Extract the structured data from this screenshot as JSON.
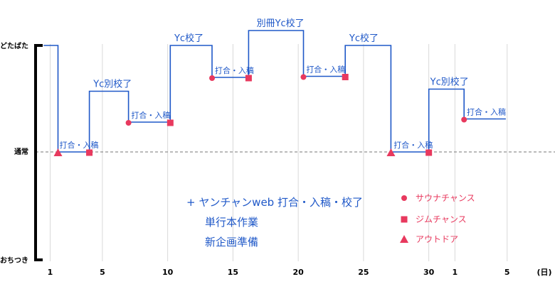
{
  "chart_data": {
    "type": "line",
    "y_levels": [
      {
        "key": "high",
        "label": "どたばた"
      },
      {
        "key": "normal",
        "label": "通常"
      },
      {
        "key": "low",
        "label": "おちつき"
      }
    ],
    "x_axis": {
      "unit_label": "(日)",
      "ticks": [
        {
          "day": 1,
          "label": "1"
        },
        {
          "day": 5,
          "label": "5"
        },
        {
          "day": 10,
          "label": "10"
        },
        {
          "day": 15,
          "label": "15"
        },
        {
          "day": 20,
          "label": "20"
        },
        {
          "day": 25,
          "label": "25"
        },
        {
          "day": 30,
          "label": "30"
        },
        {
          "day": 32,
          "label": "1"
        },
        {
          "day": 36,
          "label": "5"
        }
      ],
      "gridlines": [
        1,
        5,
        10,
        15,
        20,
        25,
        30,
        32,
        36
      ]
    },
    "series": [
      {
        "line_color": "#1f58c8",
        "points": [
          {
            "day": 0.5,
            "level": 1.0
          },
          {
            "day": 1.6,
            "level": 1.0
          },
          {
            "day": 1.6,
            "level": 0.0
          },
          {
            "day": 4.0,
            "level": 0.0
          },
          {
            "day": 4.0,
            "level": 0.57
          },
          {
            "day": 7.0,
            "level": 0.57
          },
          {
            "day": 7.0,
            "level": 0.28
          },
          {
            "day": 10.2,
            "level": 0.28
          },
          {
            "day": 10.2,
            "level": 1.0
          },
          {
            "day": 13.4,
            "level": 1.0
          },
          {
            "day": 13.4,
            "level": 0.7
          },
          {
            "day": 16.2,
            "level": 0.7
          },
          {
            "day": 16.2,
            "level": 1.14
          },
          {
            "day": 20.4,
            "level": 1.14
          },
          {
            "day": 20.4,
            "level": 0.71
          },
          {
            "day": 23.6,
            "level": 0.71
          },
          {
            "day": 23.6,
            "level": 1.0
          },
          {
            "day": 27.1,
            "level": 1.0
          },
          {
            "day": 27.1,
            "level": 0.0
          },
          {
            "day": 30.0,
            "level": 0.0
          },
          {
            "day": 30.0,
            "level": 0.59
          },
          {
            "day": 32.7,
            "level": 0.59
          },
          {
            "day": 32.7,
            "level": 0.31
          },
          {
            "day": 35.9,
            "level": 0.31
          }
        ]
      }
    ],
    "annotations": [
      {
        "text": "打合・入稿",
        "day": 1.6,
        "level": 0.0
      },
      {
        "text": "Yc別校了",
        "day": 4.2,
        "level": 0.57
      },
      {
        "text": "打合・入稿",
        "day": 7.1,
        "level": 0.28
      },
      {
        "text": "Yc校了",
        "day": 10.4,
        "level": 1.0
      },
      {
        "text": "打合・入稿",
        "day": 13.5,
        "level": 0.7
      },
      {
        "text": "別冊Yc校了",
        "day": 16.7,
        "level": 1.14
      },
      {
        "text": "打合・入稿",
        "day": 20.5,
        "level": 0.71
      },
      {
        "text": "Yc校了",
        "day": 23.8,
        "level": 1.0
      },
      {
        "text": "打合・入稿",
        "day": 27.2,
        "level": 0.0
      },
      {
        "text": "Yc別校了",
        "day": 30.0,
        "level": 0.59
      },
      {
        "text": "打合・入稿",
        "day": 32.8,
        "level": 0.31
      }
    ],
    "events": [
      {
        "marker": "triangle",
        "day": 1.6
      },
      {
        "marker": "square",
        "day": 4.0
      },
      {
        "marker": "circle",
        "day": 7.0
      },
      {
        "marker": "square",
        "day": 10.2
      },
      {
        "marker": "circle",
        "day": 13.4
      },
      {
        "marker": "square",
        "day": 16.2
      },
      {
        "marker": "circle",
        "day": 20.4
      },
      {
        "marker": "square",
        "day": 23.6
      },
      {
        "marker": "triangle",
        "day": 27.1
      },
      {
        "marker": "square",
        "day": 30.0
      },
      {
        "marker": "circle",
        "day": 32.7
      }
    ],
    "notes": [
      "+ ヤンチャンweb 打合・入稿・校了",
      "単行本作業",
      "新企画準備"
    ],
    "legend": {
      "placement": "bottom-right",
      "items": [
        {
          "marker": "circle",
          "label": "サウナチャンス"
        },
        {
          "marker": "square",
          "label": "ジムチャンス"
        },
        {
          "marker": "triangle",
          "label": "アウトドア"
        }
      ]
    },
    "colors": {
      "line": "#1f58c8",
      "marker": "#e8395e",
      "baseline": "#777777",
      "grid": "#d9d9d9",
      "axis": "#000000"
    }
  }
}
